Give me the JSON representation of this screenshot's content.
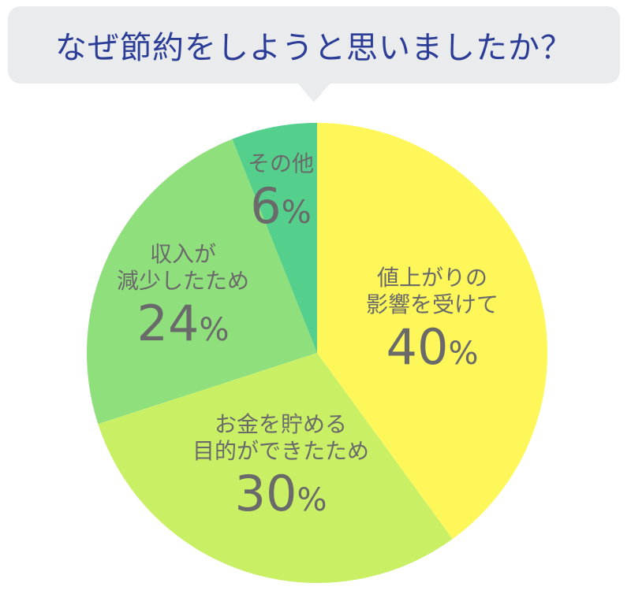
{
  "chart_data": {
    "type": "pie",
    "title": "なぜ節約をしようと思いましたか？",
    "unit": "%",
    "slices": [
      {
        "label_lines": [
          "値上がりの",
          "影響を受けて"
        ],
        "value": 40,
        "color": "#fdf75a"
      },
      {
        "label_lines": [
          "お金を貯める",
          "目的ができたため"
        ],
        "value": 30,
        "color": "#c9f065"
      },
      {
        "label_lines": [
          "収入が",
          "減少したため"
        ],
        "value": 24,
        "color": "#8fe07c"
      },
      {
        "label_lines": [
          "その他"
        ],
        "value": 6,
        "color": "#55d08c"
      }
    ]
  }
}
